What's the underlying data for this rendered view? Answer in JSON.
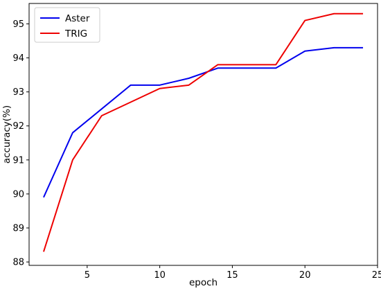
{
  "chart_data": {
    "type": "line",
    "title": "",
    "xlabel": "epoch",
    "ylabel": "accuracy(%)",
    "xlim": [
      1.0,
      25.0
    ],
    "ylim": [
      87.9,
      95.6
    ],
    "xticks": [
      5,
      10,
      15,
      20,
      25
    ],
    "yticks": [
      88,
      89,
      90,
      91,
      92,
      93,
      94,
      95
    ],
    "x": [
      2,
      4,
      6,
      8,
      10,
      12,
      14,
      16,
      18,
      20,
      22,
      24
    ],
    "series": [
      {
        "name": "Aster",
        "color": "#0000ee",
        "values": [
          89.9,
          91.8,
          92.5,
          93.2,
          93.2,
          93.4,
          93.7,
          93.7,
          93.7,
          94.2,
          94.3,
          94.3
        ]
      },
      {
        "name": "TRIG",
        "color": "#ee0000",
        "values": [
          88.3,
          91.0,
          92.3,
          92.7,
          93.1,
          93.2,
          93.8,
          93.8,
          93.8,
          95.1,
          95.3,
          95.3
        ]
      }
    ],
    "legend": "top-left",
    "grid": false
  }
}
